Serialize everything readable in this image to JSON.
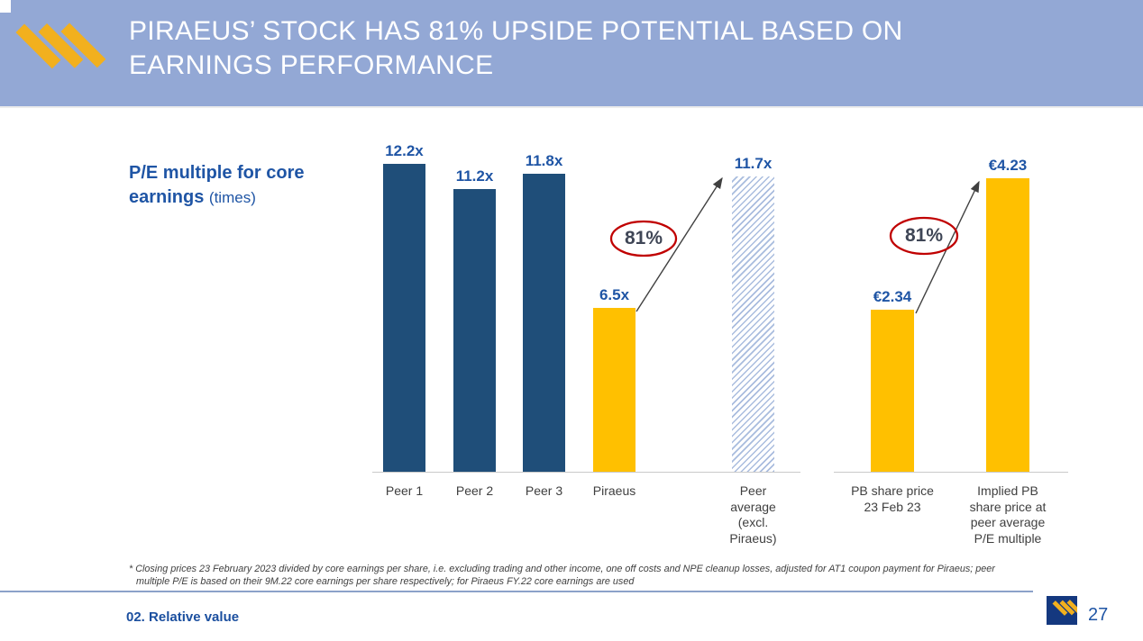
{
  "header": {
    "title": "PIRAEUS’ STOCK HAS 81% UPSIDE POTENTIAL BASED ON EARNINGS PERFORMANCE"
  },
  "chart_caption": {
    "label_bold": "P/E multiple for core earnings",
    "label_unit": "(times)"
  },
  "chart_data": [
    {
      "type": "bar",
      "title": "P/E multiple for core earnings (times)",
      "categories": [
        "Peer 1",
        "Peer 2",
        "Peer 3",
        "Piraeus",
        "Peer average (excl. Piraeus)"
      ],
      "values": [
        12.2,
        11.2,
        11.8,
        6.5,
        11.7
      ],
      "value_labels": [
        "12.2x",
        "11.2x",
        "11.8x",
        "6.5x",
        "11.7x"
      ],
      "bar_styles": [
        "navy",
        "navy",
        "navy",
        "gold",
        "hatch"
      ],
      "annotation_label": "81%",
      "xlabel": "",
      "ylabel": "",
      "ylim": [
        0,
        12.2
      ],
      "grid": false,
      "legend": "none"
    },
    {
      "type": "bar",
      "title": "",
      "categories": [
        "PB share price 23 Feb 23",
        "Implied PB share price at peer average P/E multiple"
      ],
      "values": [
        2.34,
        4.23
      ],
      "value_labels": [
        "€2.34",
        "€4.23"
      ],
      "bar_styles": [
        "gold",
        "gold"
      ],
      "annotation_label": "81%",
      "xlabel": "",
      "ylabel": "",
      "ylim": [
        0,
        4.23
      ],
      "grid": false,
      "legend": "none"
    }
  ],
  "footnote": "* Closing prices 23 February 2023 divided by core earnings per share, i.e. excluding trading and other income, one off costs and NPE cleanup losses, adjusted for AT1 coupon payment for Piraeus; peer multiple P/E  is based on their 9M.22 core earnings per share respectively; for Piraeus FY.22 core earnings are used",
  "footer": {
    "section_label": "02. Relative value",
    "page_number": "27"
  },
  "colors": {
    "header_bg": "#93a8d5",
    "title_text": "#ffffff",
    "bar_navy": "#1f4e79",
    "bar_gold": "#ffc000",
    "hatch_blue": "#a9bcde",
    "value_label_blue": "#1f55a5",
    "category_text": "#3f3f3f",
    "annotation_ellipse_red": "#c00000",
    "annotation_text": "#3f4656",
    "arrow_gray": "#404040",
    "logo_gold": "#f2b01e",
    "footer_logo_navy": "#14387f",
    "footer_line_blue": "#8ba1c9"
  },
  "icons": {
    "header_logo": "piraeus-stripes-logo",
    "footer_logo": "piraeus-stripes-logo-on-navy"
  }
}
